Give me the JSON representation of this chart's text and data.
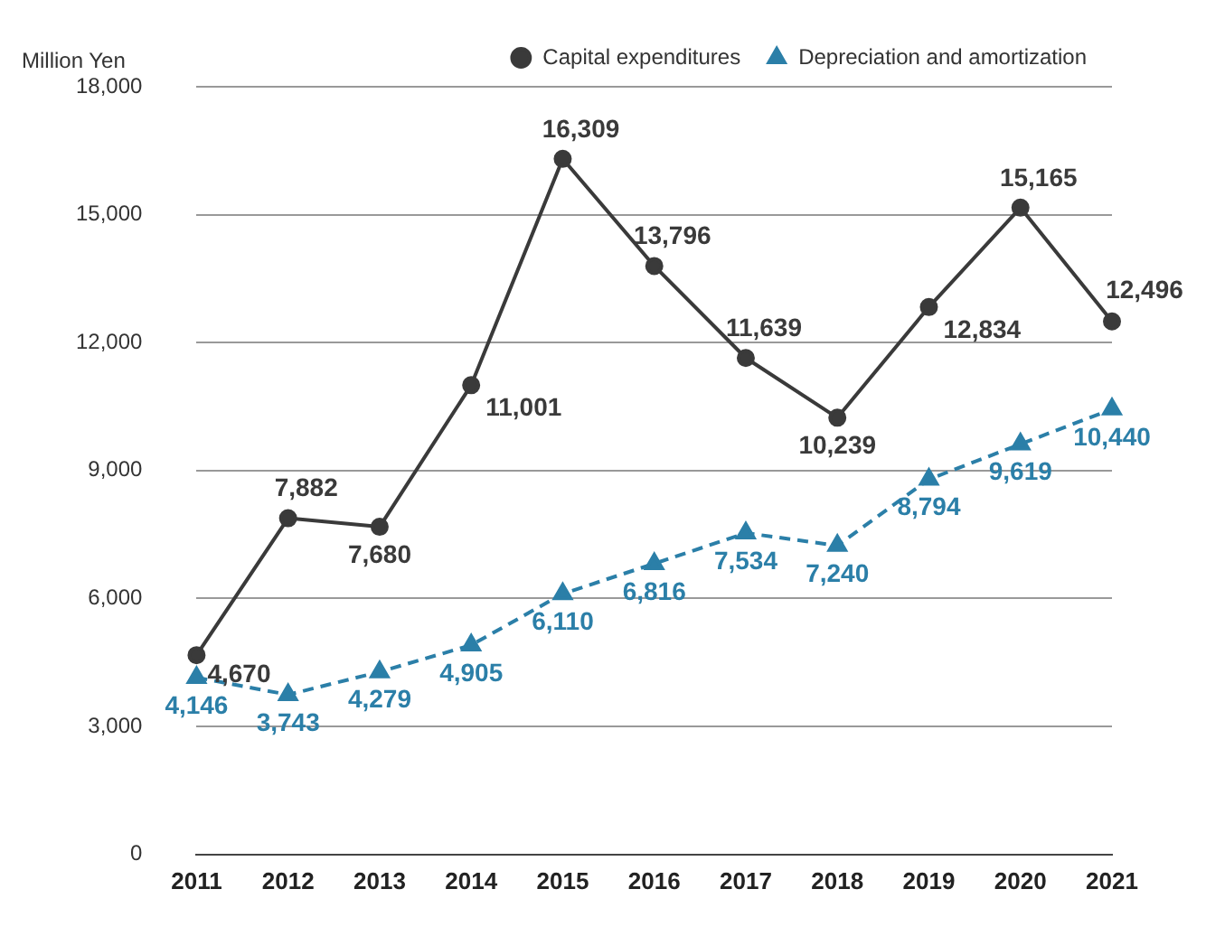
{
  "chart_data": {
    "type": "line",
    "ylabel": "Million Yen",
    "categories": [
      "2011",
      "2012",
      "2013",
      "2014",
      "2015",
      "2016",
      "2017",
      "2018",
      "2019",
      "2020",
      "2021"
    ],
    "series": [
      {
        "name": "Capital expenditures",
        "color": "#3a3a3a",
        "marker": "circle",
        "line_style": "solid",
        "values": [
          4670,
          7882,
          7680,
          11001,
          16309,
          13796,
          11639,
          10239,
          12834,
          15165,
          12496
        ],
        "value_labels": [
          "4,670",
          "7,882",
          "7,680",
          "11,001",
          "16,309",
          "13,796",
          "11,639",
          "10,239",
          "12,834",
          "15,165",
          "12,496"
        ]
      },
      {
        "name": "Depreciation and amortization",
        "color": "#2b7fa8",
        "marker": "triangle",
        "line_style": "dashed",
        "values": [
          4146,
          3743,
          4279,
          4905,
          6110,
          6816,
          7534,
          7240,
          8794,
          9619,
          10440
        ],
        "value_labels": [
          "4,146",
          "3,743",
          "4,279",
          "4,905",
          "6,110",
          "6,816",
          "7,534",
          "7,240",
          "8,794",
          "9,619",
          "10,440"
        ]
      }
    ],
    "ylim": [
      0,
      18000
    ],
    "yticks": [
      0,
      {
        "value": 3000,
        "label": "3,000"
      },
      {
        "value": 6000,
        "label": "6,000"
      },
      {
        "value": 9000,
        "label": "9,000"
      },
      {
        "value": 12000,
        "label": "12,000"
      },
      {
        "value": 15000,
        "label": "15,000"
      },
      {
        "value": 18000,
        "label": "18,000"
      }
    ],
    "grid": "y",
    "legend": "top right"
  }
}
